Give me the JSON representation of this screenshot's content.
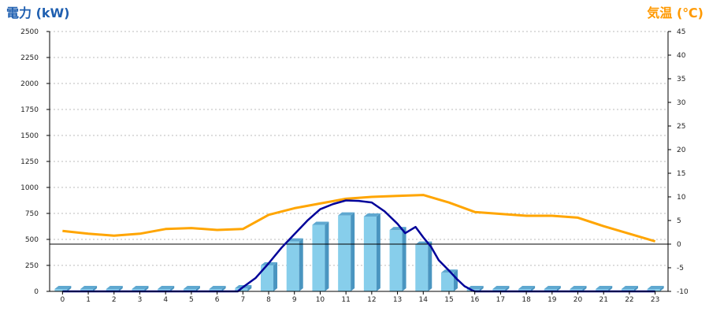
{
  "chart_data": {
    "type": "bar+line",
    "title_left": "電力 (kW)",
    "title_right": "気温 (℃)",
    "ylim_left": [
      0,
      2500
    ],
    "ylim_right": [
      -10,
      45
    ],
    "left_ticks": [
      0,
      250,
      500,
      750,
      1000,
      1250,
      1500,
      1750,
      2000,
      2250,
      2500
    ],
    "right_ticks": [
      -10,
      -5,
      0,
      5,
      10,
      15,
      20,
      25,
      30,
      35,
      40,
      45
    ],
    "categories": [
      "0",
      "1",
      "2",
      "3",
      "4",
      "5",
      "6",
      "7",
      "8",
      "9",
      "10",
      "11",
      "12",
      "13",
      "14",
      "15",
      "16",
      "17",
      "18",
      "19",
      "20",
      "21",
      "22",
      "23"
    ],
    "bar_values": [
      0,
      0,
      0,
      0,
      0,
      0,
      0,
      30,
      250,
      480,
      640,
      730,
      720,
      590,
      450,
      180,
      0,
      0,
      0,
      0,
      0,
      0,
      0,
      0
    ],
    "grid": "horizontal dotted",
    "zero_line_right": 0,
    "power_line": [
      [
        0,
        0
      ],
      [
        1,
        0
      ],
      [
        2,
        0
      ],
      [
        3,
        0
      ],
      [
        4,
        0
      ],
      [
        5,
        0
      ],
      [
        6,
        0
      ],
      [
        6.8,
        0
      ],
      [
        7,
        40
      ],
      [
        7.5,
        130
      ],
      [
        8,
        270
      ],
      [
        8.5,
        420
      ],
      [
        9,
        550
      ],
      [
        9.5,
        680
      ],
      [
        10,
        790
      ],
      [
        10.5,
        840
      ],
      [
        11,
        875
      ],
      [
        11.5,
        870
      ],
      [
        12,
        855
      ],
      [
        12.5,
        770
      ],
      [
        13,
        650
      ],
      [
        13.3,
        560
      ],
      [
        13.7,
        620
      ],
      [
        14,
        520
      ],
      [
        14.3,
        430
      ],
      [
        14.6,
        300
      ],
      [
        15,
        200
      ],
      [
        15.3,
        120
      ],
      [
        15.6,
        50
      ],
      [
        15.9,
        10
      ],
      [
        16,
        0
      ],
      [
        17,
        0
      ],
      [
        18,
        0
      ],
      [
        19,
        0
      ],
      [
        20,
        0
      ],
      [
        21,
        0
      ],
      [
        22,
        0
      ],
      [
        23,
        0
      ]
    ],
    "temperature": [
      2.8,
      2.2,
      1.8,
      2.2,
      3.2,
      3.4,
      3.0,
      3.2,
      6.2,
      7.6,
      8.6,
      9.6,
      10.0,
      10.2,
      10.4,
      8.8,
      6.8,
      6.4,
      6.0,
      6.0,
      5.6,
      3.8,
      2.2,
      0.6
    ],
    "colors": {
      "left_title": "#1f5fb0",
      "right_title": "#ff9900",
      "bar_front": "#87ceeb",
      "bar_side": "#4a95c0",
      "bar_top": "#5fa8d0",
      "power_line": "#000099",
      "temperature_line": "#ffa500",
      "grid": "#bbbbbb"
    }
  }
}
